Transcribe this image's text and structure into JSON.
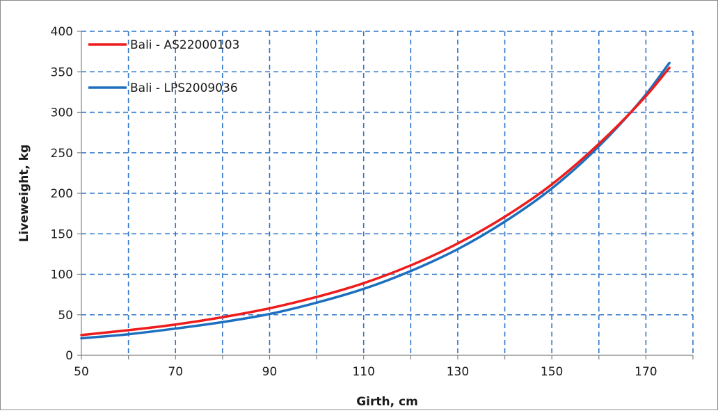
{
  "chart_data": {
    "type": "line",
    "title": "",
    "xlabel": "Girth, cm",
    "ylabel": "Liveweight, kg",
    "xlim": [
      50,
      180
    ],
    "ylim": [
      0,
      400
    ],
    "x_ticks": [
      50,
      60,
      70,
      80,
      90,
      100,
      110,
      120,
      130,
      140,
      150,
      160,
      170,
      180
    ],
    "x_tick_labels": [
      "50",
      "70",
      "90",
      "110",
      "130",
      "150",
      "170"
    ],
    "y_ticks": [
      0,
      50,
      100,
      150,
      200,
      250,
      300,
      350,
      400
    ],
    "y_tick_labels": [
      "0",
      "50",
      "100",
      "150",
      "200",
      "250",
      "300",
      "350",
      "400"
    ],
    "grid": true,
    "legend_position": "top-left",
    "series": [
      {
        "name": "Bali - AS22000103",
        "color": "#ee1c1c",
        "x": [
          50,
          60,
          70,
          80,
          90,
          100,
          110,
          120,
          130,
          140,
          150,
          160,
          170,
          175
        ],
        "y": [
          25,
          31,
          38,
          47,
          58,
          72,
          89,
          111,
          138,
          171,
          211,
          261,
          320,
          355
        ]
      },
      {
        "name": "Bali - LPS2009036",
        "color": "#1c6fbf",
        "x": [
          50,
          60,
          70,
          80,
          90,
          100,
          110,
          120,
          130,
          140,
          150,
          160,
          170,
          175
        ],
        "y": [
          21,
          26,
          33,
          41,
          51,
          65,
          82,
          104,
          131,
          165,
          206,
          258,
          322,
          361
        ]
      }
    ]
  }
}
